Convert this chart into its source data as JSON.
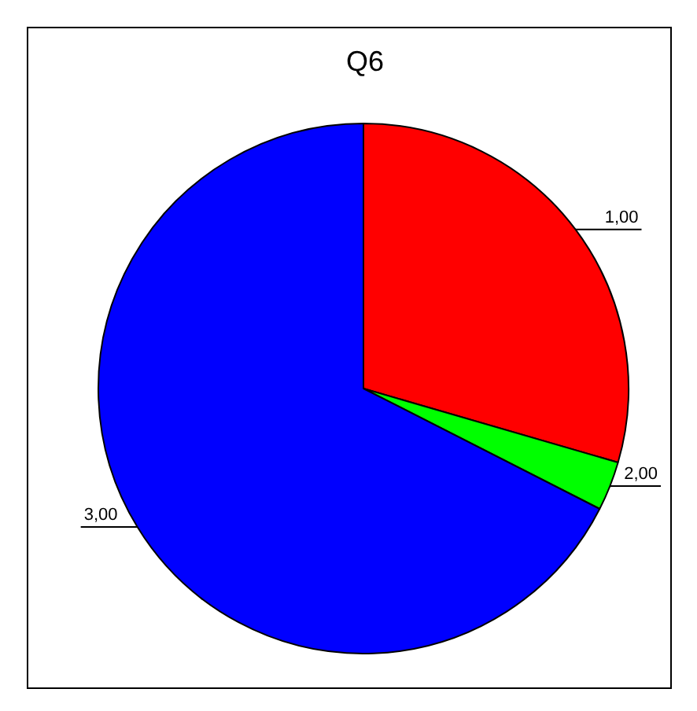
{
  "chart_data": {
    "type": "pie",
    "title": "Q6",
    "categories": [
      "1,00",
      "2,00",
      "3,00"
    ],
    "values": [
      29.5,
      3,
      67.5
    ],
    "colors": [
      "#ff0000",
      "#00ff00",
      "#0000ff"
    ],
    "legend": false
  }
}
